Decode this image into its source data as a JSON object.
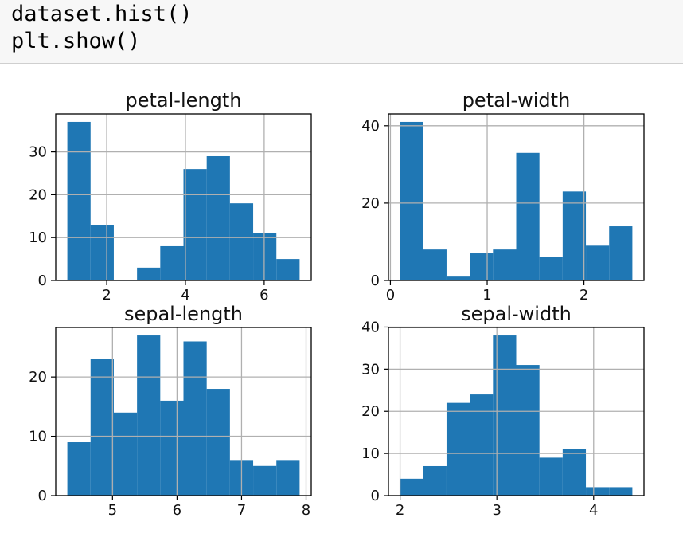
{
  "code": {
    "lines": [
      "dataset.hist()",
      "plt.show()"
    ]
  },
  "colors": {
    "bar": "#1f77b4",
    "grid": "#b0b0b0",
    "axis": "#000000",
    "code_bg": "#f7f7f7"
  },
  "chart_data": [
    {
      "type": "bar",
      "title": "petal-length",
      "bin_edges": [
        1.0,
        1.59,
        2.18,
        2.77,
        3.36,
        3.95,
        4.54,
        5.13,
        5.72,
        6.31,
        6.9
      ],
      "values": [
        37,
        13,
        0,
        3,
        8,
        26,
        29,
        18,
        11,
        5
      ],
      "xlim": [
        0.705,
        7.195
      ],
      "ylim": [
        0,
        38.85
      ],
      "xticks": [
        2,
        4,
        6
      ],
      "yticks": [
        0,
        10,
        20,
        30
      ],
      "grid": true
    },
    {
      "type": "bar",
      "title": "petal-width",
      "bin_edges": [
        0.1,
        0.34,
        0.58,
        0.82,
        1.06,
        1.3,
        1.54,
        1.78,
        2.02,
        2.26,
        2.5
      ],
      "values": [
        41,
        8,
        1,
        7,
        8,
        33,
        6,
        23,
        9,
        14
      ],
      "xlim": [
        -0.02,
        2.62
      ],
      "ylim": [
        0,
        43.05
      ],
      "xticks": [
        0,
        1,
        2
      ],
      "yticks": [
        0,
        20,
        40
      ],
      "grid": true
    },
    {
      "type": "bar",
      "title": "sepal-length",
      "bin_edges": [
        4.3,
        4.66,
        5.02,
        5.38,
        5.74,
        6.1,
        6.46,
        6.82,
        7.18,
        7.54,
        7.9
      ],
      "values": [
        9,
        23,
        14,
        27,
        16,
        26,
        18,
        6,
        5,
        6
      ],
      "xlim": [
        4.12,
        8.08
      ],
      "ylim": [
        0,
        28.35
      ],
      "xticks": [
        5,
        6,
        7,
        8
      ],
      "yticks": [
        0,
        10,
        20
      ],
      "grid": true
    },
    {
      "type": "bar",
      "title": "sepal-width",
      "bin_edges": [
        2.0,
        2.24,
        2.48,
        2.72,
        2.96,
        3.2,
        3.44,
        3.68,
        3.92,
        4.16,
        4.4
      ],
      "values": [
        4,
        7,
        22,
        24,
        38,
        31,
        9,
        11,
        2,
        2
      ],
      "xlim": [
        1.88,
        4.52
      ],
      "ylim": [
        0,
        39.9
      ],
      "xticks": [
        2,
        3,
        4
      ],
      "yticks": [
        0,
        10,
        20,
        30,
        40
      ],
      "grid": true
    }
  ]
}
